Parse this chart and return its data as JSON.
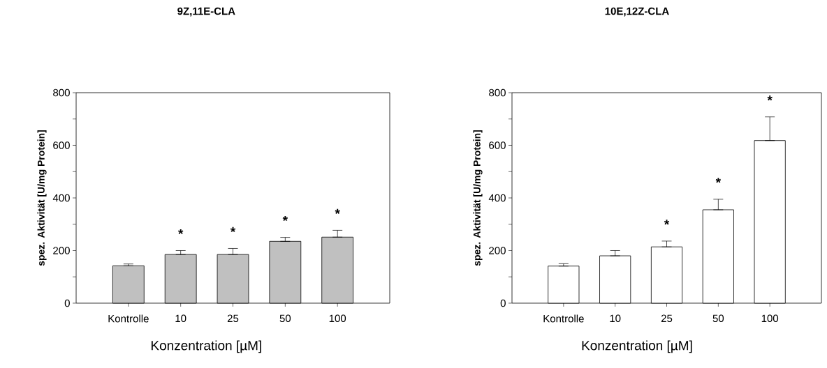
{
  "chart_data": [
    {
      "type": "bar",
      "title": "9Z,11E-CLA",
      "xlabel": "Konzentration [µM]",
      "ylabel": "spez. Aktivität [U/mg Protein]",
      "categories": [
        "Kontrolle",
        "10",
        "25",
        "50",
        "100"
      ],
      "values": [
        142,
        185,
        185,
        235,
        251
      ],
      "errors": [
        [
          142,
          149
        ],
        [
          185,
          200
        ],
        [
          185,
          208
        ],
        [
          235,
          250
        ],
        [
          251,
          277
        ]
      ],
      "color": "#c0c0c0",
      "ylim": [
        0,
        800
      ],
      "yticks": [
        0,
        {
          "value": 100,
          "label": null
        },
        200,
        {
          "value": 300,
          "label": null
        },
        400,
        {
          "value": 500,
          "label": null
        },
        600,
        {
          "value": 700,
          "label": null
        },
        800
      ],
      "value_labels": [
        null,
        "*",
        "*",
        "*",
        "*"
      ]
    },
    {
      "type": "bar",
      "title": "10E,12Z-CLA",
      "xlabel": "Konzentration [µM]",
      "ylabel": "spez. Aktivität [U/mg Protein]",
      "categories": [
        "Kontrolle",
        "10",
        "25",
        "50",
        "100"
      ],
      "values": [
        141,
        180,
        214,
        355,
        618
      ],
      "errors": [
        [
          141,
          150
        ],
        [
          180,
          200
        ],
        [
          214,
          236
        ],
        [
          355,
          395
        ],
        [
          618,
          708
        ]
      ],
      "color": "#ffffff",
      "ylim": [
        0,
        800
      ],
      "yticks": [
        0,
        {
          "value": 100,
          "label": null
        },
        200,
        {
          "value": 300,
          "label": null
        },
        400,
        {
          "value": 500,
          "label": null
        },
        600,
        {
          "value": 700,
          "label": null
        },
        800
      ],
      "value_labels": [
        null,
        null,
        "*",
        "*",
        "*"
      ]
    }
  ]
}
